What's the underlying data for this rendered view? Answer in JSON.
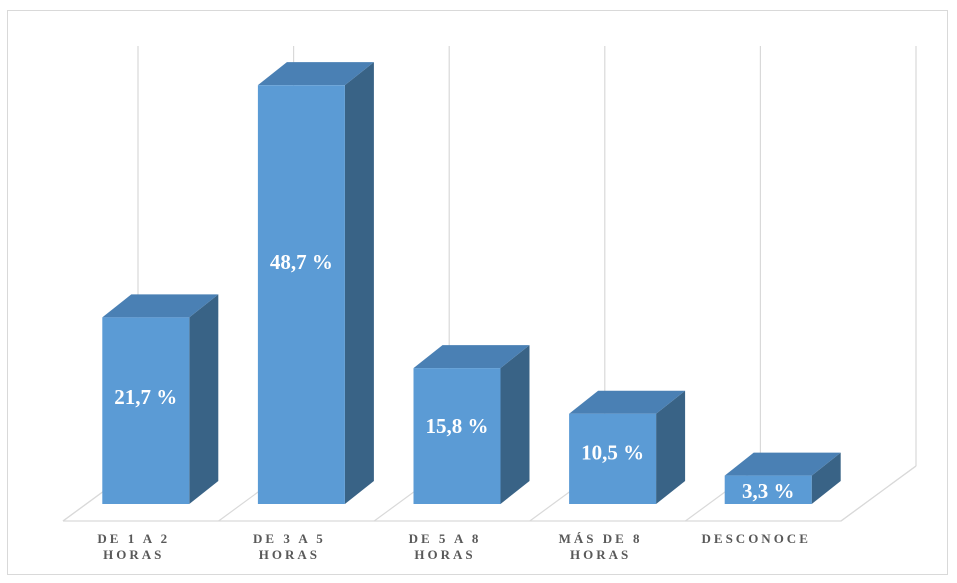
{
  "chart_data": {
    "type": "bar",
    "style": "3d-column",
    "categories": [
      [
        "DE 1 A 2",
        "HORAS"
      ],
      [
        "DE 3 A 5",
        "HORAS"
      ],
      [
        "DE 5 A 8",
        "HORAS"
      ],
      [
        "MÁS DE 8",
        "HORAS"
      ],
      [
        "DESCONOCE"
      ]
    ],
    "values": [
      21.7,
      48.7,
      15.8,
      10.5,
      3.3
    ],
    "value_labels": [
      "21,7 %",
      "48,7 %",
      "15,8 %",
      "10,5 %",
      "3,3 %"
    ],
    "ylim": [
      0,
      55
    ],
    "grid": true,
    "legend": "none"
  },
  "colors": {
    "bar_front": "#5b9bd5",
    "bar_side": "#396386",
    "bar_top": "#4a80b4",
    "grid": "#d9d9d9",
    "label": "#595959"
  }
}
